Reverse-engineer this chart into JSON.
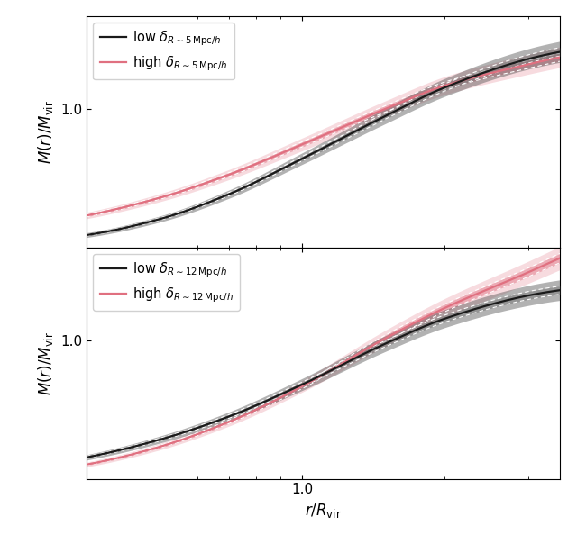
{
  "x_min": 0.35,
  "x_max": 3.5,
  "y_min": 0.22,
  "y_max": 1.52,
  "black_color": "#1a1a1a",
  "pink_color": "#e07080",
  "top_legend_low": "low $\\delta_{R\\sim 5\\,\\mathrm{Mpc}/h}$",
  "top_legend_high": "high $\\delta_{R\\sim 5\\,\\mathrm{Mpc}/h}$",
  "bot_legend_low": "low $\\delta_{R\\sim 12\\,\\mathrm{Mpc}/h}$",
  "bot_legend_high": "high $\\delta_{R\\sim 12\\,\\mathrm{Mpc}/h}$",
  "ylabel": "$M(r)/M_\\mathrm{vir}$",
  "xlabel": "$r/R_\\mathrm{vir}$",
  "figsize": [
    6.4,
    6.04
  ],
  "dpi": 100,
  "top_black_pts": [
    [
      0.35,
      0.29
    ],
    [
      0.5,
      0.38
    ],
    [
      0.7,
      0.52
    ],
    [
      1.0,
      0.72
    ],
    [
      1.5,
      0.96
    ],
    [
      2.0,
      1.12
    ],
    [
      3.0,
      1.28
    ],
    [
      3.5,
      1.32
    ]
  ],
  "top_pink_pts": [
    [
      0.35,
      0.4
    ],
    [
      0.5,
      0.5
    ],
    [
      0.7,
      0.63
    ],
    [
      1.0,
      0.8
    ],
    [
      1.5,
      1.0
    ],
    [
      2.0,
      1.13
    ],
    [
      3.0,
      1.25
    ],
    [
      3.5,
      1.29
    ]
  ],
  "bot_black_pts": [
    [
      0.35,
      0.34
    ],
    [
      0.5,
      0.44
    ],
    [
      0.7,
      0.57
    ],
    [
      1.0,
      0.75
    ],
    [
      1.5,
      0.98
    ],
    [
      2.0,
      1.12
    ],
    [
      3.0,
      1.25
    ],
    [
      3.5,
      1.28
    ]
  ],
  "bot_pink_pts": [
    [
      0.35,
      0.3
    ],
    [
      0.5,
      0.4
    ],
    [
      0.7,
      0.54
    ],
    [
      1.0,
      0.74
    ],
    [
      1.5,
      1.01
    ],
    [
      2.0,
      1.18
    ],
    [
      3.0,
      1.38
    ],
    [
      3.5,
      1.46
    ]
  ]
}
